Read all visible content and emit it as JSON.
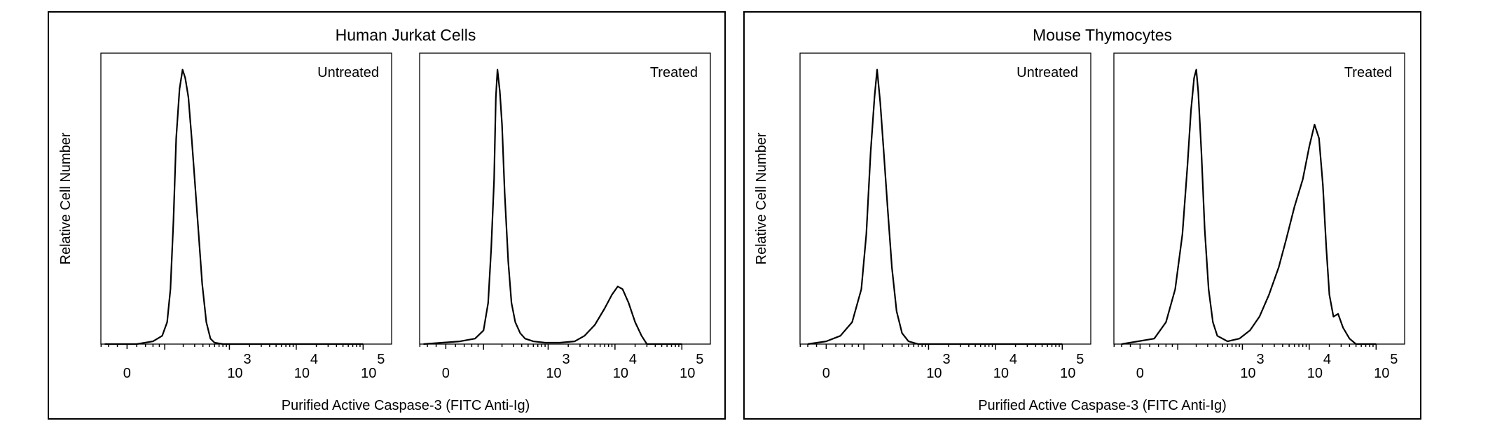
{
  "chart_data": {
    "type": "histogram",
    "x_scale": "logicle",
    "x_ticks": [
      {
        "value": 0,
        "base": "0",
        "exp": ""
      },
      {
        "value": 1000,
        "base": "10",
        "exp": "3"
      },
      {
        "value": 10000,
        "base": "10",
        "exp": "4"
      },
      {
        "value": 100000,
        "base": "10",
        "exp": "5"
      }
    ],
    "ylim": [
      0,
      105
    ],
    "groups": [
      {
        "title": "Human Jurkat Cells",
        "ylabel": "Relative Cell Number",
        "xlabel": "Purified Active Caspase-3 (FITC Anti-Ig)",
        "panels": [
          {
            "label": "Untreated",
            "points": [
              [
                -50,
                0
              ],
              [
                20,
                0
              ],
              [
                60,
                1
              ],
              [
                90,
                3
              ],
              [
                110,
                8
              ],
              [
                125,
                20
              ],
              [
                140,
                45
              ],
              [
                155,
                75
              ],
              [
                175,
                93
              ],
              [
                195,
                100
              ],
              [
                215,
                97
              ],
              [
                240,
                90
              ],
              [
                270,
                75
              ],
              [
                300,
                60
              ],
              [
                340,
                42
              ],
              [
                390,
                22
              ],
              [
                450,
                8
              ],
              [
                520,
                2
              ],
              [
                600,
                0.5
              ],
              [
                800,
                0
              ],
              [
                100000,
                0
              ]
            ]
          },
          {
            "label": "Treated",
            "points": [
              [
                -50,
                0
              ],
              [
                30,
                1
              ],
              [
                70,
                2
              ],
              [
                100,
                5
              ],
              [
                120,
                15
              ],
              [
                135,
                35
              ],
              [
                150,
                60
              ],
              [
                160,
                90
              ],
              [
                170,
                100
              ],
              [
                185,
                92
              ],
              [
                200,
                80
              ],
              [
                220,
                55
              ],
              [
                250,
                30
              ],
              [
                280,
                15
              ],
              [
                320,
                8
              ],
              [
                380,
                4
              ],
              [
                450,
                2
              ],
              [
                600,
                1
              ],
              [
                900,
                0.5
              ],
              [
                1500,
                0.5
              ],
              [
                2500,
                1
              ],
              [
                3500,
                3
              ],
              [
                5000,
                7
              ],
              [
                7000,
                13
              ],
              [
                9000,
                18
              ],
              [
                11000,
                21
              ],
              [
                13000,
                20
              ],
              [
                16000,
                15
              ],
              [
                20000,
                8
              ],
              [
                25000,
                3
              ],
              [
                30000,
                0
              ],
              [
                100000,
                0
              ]
            ]
          }
        ]
      },
      {
        "title": "Mouse Thymocytes",
        "ylabel": "Relative Cell Number",
        "xlabel": "Purified Active Caspase-3 (FITC Anti-Ig)",
        "panels": [
          {
            "label": "Untreated",
            "points": [
              [
                -40,
                0
              ],
              [
                0,
                1
              ],
              [
                30,
                3
              ],
              [
                60,
                8
              ],
              [
                90,
                20
              ],
              [
                110,
                40
              ],
              [
                130,
                70
              ],
              [
                150,
                90
              ],
              [
                165,
                100
              ],
              [
                185,
                88
              ],
              [
                210,
                70
              ],
              [
                240,
                50
              ],
              [
                280,
                28
              ],
              [
                330,
                12
              ],
              [
                400,
                4
              ],
              [
                500,
                1
              ],
              [
                700,
                0
              ],
              [
                100000,
                0
              ]
            ]
          },
          {
            "label": "Treated",
            "points": [
              [
                -40,
                0
              ],
              [
                30,
                2
              ],
              [
                60,
                8
              ],
              [
                90,
                20
              ],
              [
                120,
                40
              ],
              [
                145,
                65
              ],
              [
                165,
                85
              ],
              [
                185,
                97
              ],
              [
                200,
                100
              ],
              [
                215,
                92
              ],
              [
                240,
                70
              ],
              [
                270,
                42
              ],
              [
                310,
                20
              ],
              [
                360,
                8
              ],
              [
                420,
                3
              ],
              [
                600,
                1
              ],
              [
                900,
                2
              ],
              [
                1300,
                5
              ],
              [
                1800,
                10
              ],
              [
                2500,
                18
              ],
              [
                3500,
                28
              ],
              [
                4500,
                38
              ],
              [
                6000,
                50
              ],
              [
                8000,
                60
              ],
              [
                10000,
                72
              ],
              [
                12000,
                80
              ],
              [
                14000,
                75
              ],
              [
                16000,
                58
              ],
              [
                18000,
                35
              ],
              [
                20000,
                18
              ],
              [
                23000,
                10
              ],
              [
                27000,
                11
              ],
              [
                32000,
                6
              ],
              [
                40000,
                2
              ],
              [
                50000,
                0
              ],
              [
                100000,
                0
              ]
            ]
          }
        ]
      }
    ]
  }
}
